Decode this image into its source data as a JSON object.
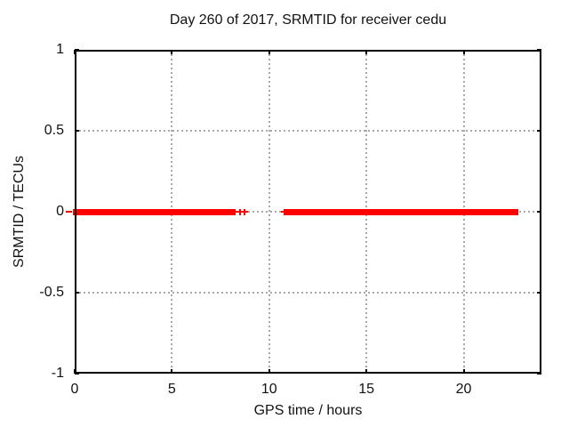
{
  "figure": {
    "title": "Day 260 of 2017, SRMTID for receiver cedu",
    "background": "#ffffff"
  },
  "axes": {
    "x": {
      "label": "GPS time / hours",
      "tick_labels": [
        "0",
        "5",
        "10",
        "15",
        "20"
      ]
    },
    "y": {
      "label": "SRMTID / TECUs",
      "tick_labels": [
        "1",
        "0.5",
        "0",
        "-0.5",
        "-1"
      ]
    }
  },
  "colors": {
    "series_red": "#ff0000",
    "border": "#000000",
    "grid": "#a8a8a8",
    "text": "#111111"
  },
  "chart_data": {
    "type": "scatter",
    "title": "Day 260 of 2017, SRMTID for receiver cedu",
    "xlabel": "GPS time / hours",
    "ylabel": "SRMTID / TECUs",
    "xlim": [
      0,
      24
    ],
    "ylim": [
      -1,
      1
    ],
    "xticks": [
      0,
      5,
      10,
      15,
      20
    ],
    "yticks": [
      1,
      0.5,
      0,
      -0.5,
      -1
    ],
    "grid": true,
    "legend": false,
    "marker": "plus",
    "series": [
      {
        "name": "SRMTID",
        "color": "#ff0000",
        "value_tecus": 0,
        "dense_segments_hours": [
          [
            0.0,
            8.02
          ],
          [
            10.82,
            22.72
          ]
        ],
        "isolated_points_hours": [
          8.15,
          8.24,
          8.5,
          8.72
        ],
        "edge_dashes_hours": [
          -0.34,
          10.72
        ]
      }
    ]
  }
}
